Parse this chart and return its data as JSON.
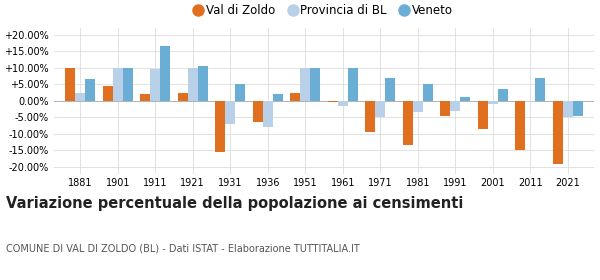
{
  "years": [
    1881,
    1901,
    1911,
    1921,
    1931,
    1936,
    1951,
    1961,
    1971,
    1981,
    1991,
    2001,
    2011,
    2021
  ],
  "val_di_zoldo": [
    10.0,
    4.5,
    2.0,
    2.5,
    -15.5,
    -6.5,
    2.5,
    -0.5,
    -9.5,
    -13.5,
    -4.5,
    -8.5,
    -15.0,
    -19.0
  ],
  "provincia_bl": [
    2.5,
    10.0,
    9.5,
    10.0,
    -7.0,
    -8.0,
    10.0,
    -1.5,
    -5.0,
    -3.5,
    -3.0,
    -1.0,
    -0.5,
    -5.0
  ],
  "veneto": [
    6.5,
    10.0,
    16.5,
    10.5,
    5.0,
    2.0,
    10.0,
    10.0,
    7.0,
    5.0,
    1.0,
    3.5,
    7.0,
    -4.5
  ],
  "color_val_di_zoldo": "#E07020",
  "color_provincia_bl": "#B8D0E8",
  "color_veneto": "#6AAED6",
  "title": "Variazione percentuale della popolazione ai censimenti",
  "subtitle": "COMUNE DI VAL DI ZOLDO (BL) - Dati ISTAT - Elaborazione TUTTITALIA.IT",
  "yticks": [
    -20,
    -15,
    -10,
    -5,
    0,
    5,
    10,
    15,
    20
  ],
  "ylim": [
    -22,
    22
  ],
  "bar_width": 0.27,
  "background_color": "#ffffff",
  "grid_color": "#dddddd",
  "title_fontsize": 10.5,
  "subtitle_fontsize": 7.0,
  "tick_fontsize": 7.0,
  "legend_fontsize": 8.5
}
